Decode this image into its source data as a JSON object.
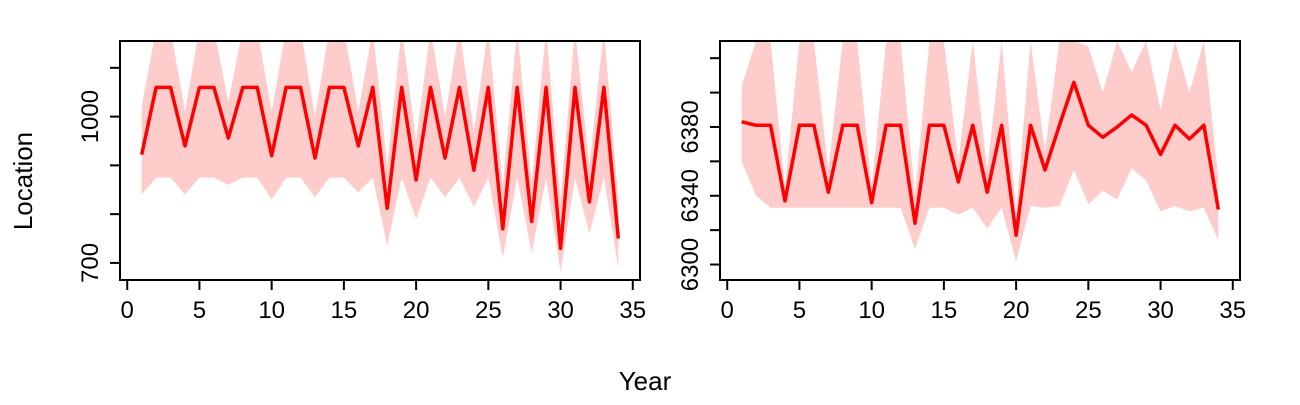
{
  "figure": {
    "shared_xlabel": "Year",
    "shared_ylabel": "Location",
    "colors": {
      "line": "#ff0000",
      "band": "#ffcccc",
      "frame": "#000000"
    }
  },
  "chart_data": [
    {
      "type": "line",
      "title": "",
      "xlabel": "Year",
      "ylabel": "Location",
      "xlim": [
        -0.5,
        35.5
      ],
      "ylim": [
        665,
        1155
      ],
      "x_ticks": [
        0,
        5,
        10,
        15,
        20,
        25,
        30,
        35
      ],
      "x_tick_labels": [
        "0",
        "5",
        "10",
        "15",
        "20",
        "25",
        "30",
        "35"
      ],
      "y_ticks": [
        700,
        800,
        900,
        1000,
        1100
      ],
      "y_tick_labels": [
        "700",
        "",
        "",
        "1000",
        ""
      ],
      "grid": false,
      "legend": "none",
      "x": [
        1,
        2,
        3,
        4,
        5,
        6,
        7,
        8,
        9,
        10,
        11,
        12,
        13,
        14,
        15,
        16,
        17,
        18,
        19,
        20,
        21,
        22,
        23,
        24,
        25,
        26,
        27,
        28,
        29,
        30,
        31,
        32,
        33,
        34
      ],
      "series": [
        {
          "values": [
            922,
            1060,
            1060,
            940,
            1060,
            1060,
            956,
            1060,
            1060,
            920,
            1060,
            1060,
            915,
            1060,
            1060,
            940,
            1060,
            812,
            1060,
            870,
            1060,
            915,
            1060,
            890,
            1060,
            770,
            1060,
            785,
            1060,
            730,
            1060,
            825,
            1060,
            750
          ],
          "lower": [
            840,
            875,
            875,
            840,
            875,
            875,
            860,
            875,
            875,
            830,
            875,
            875,
            835,
            875,
            875,
            845,
            875,
            735,
            875,
            790,
            875,
            835,
            875,
            815,
            875,
            710,
            875,
            720,
            875,
            680,
            875,
            760,
            875,
            690
          ],
          "upper": [
            1020,
            1180,
            1180,
            1010,
            1180,
            1180,
            1030,
            1180,
            1180,
            1010,
            1180,
            1180,
            1000,
            1180,
            1180,
            1010,
            1180,
            900,
            1180,
            950,
            1180,
            1000,
            1180,
            970,
            1180,
            860,
            1180,
            865,
            1180,
            830,
            1180,
            900,
            1180,
            830
          ]
        }
      ]
    },
    {
      "type": "line",
      "title": "",
      "xlabel": "Year",
      "ylabel": "",
      "xlim": [
        -0.5,
        35.5
      ],
      "ylim": [
        6291,
        6430
      ],
      "x_ticks": [
        0,
        5,
        10,
        15,
        20,
        25,
        30,
        35
      ],
      "x_tick_labels": [
        "0",
        "5",
        "10",
        "15",
        "20",
        "25",
        "30",
        "35"
      ],
      "y_ticks": [
        6300,
        6320,
        6340,
        6360,
        6380,
        6400,
        6420
      ],
      "y_tick_labels": [
        "6300",
        "",
        "6340",
        "",
        "6380",
        "",
        ""
      ],
      "grid": false,
      "legend": "none",
      "x": [
        1,
        2,
        3,
        4,
        5,
        6,
        7,
        8,
        9,
        10,
        11,
        12,
        13,
        14,
        15,
        16,
        17,
        18,
        19,
        20,
        21,
        22,
        23,
        24,
        25,
        26,
        27,
        28,
        29,
        30,
        31,
        32,
        33,
        34
      ],
      "series": [
        {
          "values": [
            6383,
            6381,
            6381,
            6337,
            6381,
            6381,
            6342,
            6381,
            6381,
            6336,
            6381,
            6381,
            6324,
            6381,
            6381,
            6348,
            6381,
            6342,
            6381,
            6317,
            6381,
            6355,
            6381,
            6406,
            6381,
            6374,
            6380,
            6387,
            6381,
            6364,
            6381,
            6373,
            6381,
            6332
          ],
          "lower": [
            6360,
            6340,
            6333,
            6333,
            6333,
            6333,
            6333,
            6333,
            6333,
            6333,
            6333,
            6333,
            6309,
            6333,
            6333,
            6329,
            6333,
            6321,
            6333,
            6302,
            6334,
            6333,
            6334,
            6355,
            6335,
            6343,
            6338,
            6356,
            6349,
            6331,
            6334,
            6331,
            6333,
            6314
          ],
          "upper": [
            6404,
            6430,
            6430,
            6345,
            6430,
            6430,
            6355,
            6430,
            6430,
            6345,
            6430,
            6430,
            6340,
            6430,
            6430,
            6360,
            6430,
            6355,
            6430,
            6330,
            6430,
            6366,
            6430,
            6430,
            6427,
            6400,
            6430,
            6412,
            6430,
            6390,
            6430,
            6400,
            6430,
            6350
          ]
        }
      ]
    }
  ]
}
